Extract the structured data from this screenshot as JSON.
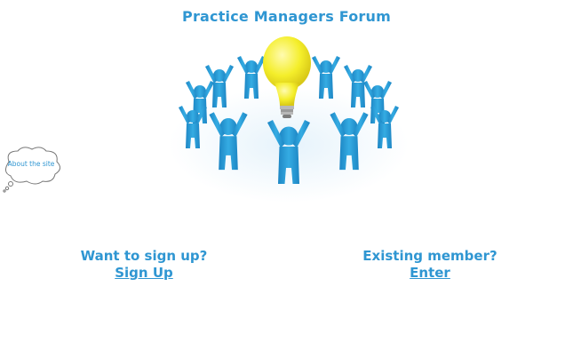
{
  "header": {
    "title": "Practice Managers Forum"
  },
  "hero": {
    "icon": "people-circle-lightbulb-icon"
  },
  "about": {
    "label": "About the site",
    "icon": "thought-bubble-icon"
  },
  "signup": {
    "question": "Want to sign up?",
    "link_label": "Sign Up"
  },
  "login": {
    "question": "Existing member?",
    "link_label": "Enter"
  },
  "colors": {
    "accent": "#2f96d2",
    "figure": "#2a9fd6",
    "bulb": "#f4ee2a"
  }
}
